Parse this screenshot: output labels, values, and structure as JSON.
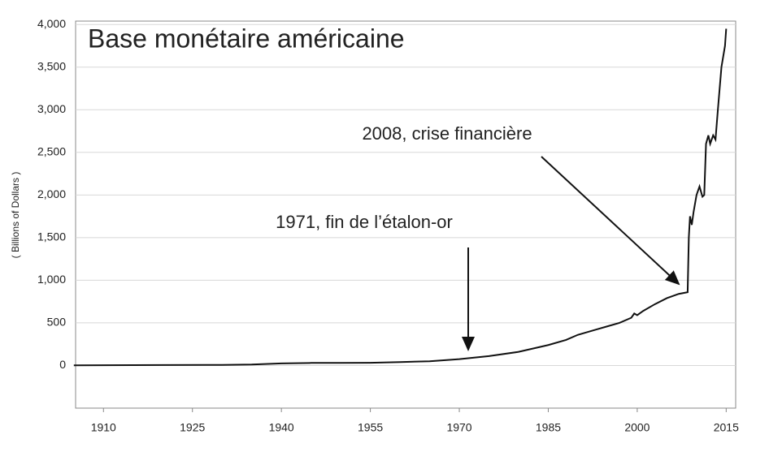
{
  "chart_data": {
    "type": "line",
    "title": "Base monétaire américaine",
    "y_label": "( Billions of Dollars )",
    "annotations": [
      "2008, crise financière",
      "1971, fin de l’étalon-or"
    ],
    "x": [
      1905,
      1915,
      1920,
      1930,
      1935,
      1940,
      1945,
      1950,
      1955,
      1960,
      1965,
      1970,
      1975,
      1980,
      1985,
      1988,
      1990,
      1993,
      1995,
      1997,
      1999,
      1999.5,
      2000,
      2001,
      2003,
      2005,
      2007,
      2008.5,
      2008.7,
      2008.9,
      2009.2,
      2009.5,
      2010,
      2010.5,
      2011,
      2011.3,
      2011.6,
      2012,
      2012.3,
      2012.8,
      2013.2,
      2013.6,
      2014.2,
      2014.8,
      2015
    ],
    "series": [
      {
        "name": "Base monétaire",
        "color": "#111111",
        "values": [
          2,
          4,
          6,
          7,
          12,
          25,
          30,
          30,
          32,
          40,
          50,
          75,
          110,
          160,
          240,
          300,
          360,
          420,
          460,
          500,
          560,
          610,
          590,
          640,
          720,
          790,
          840,
          860,
          1500,
          1750,
          1650,
          1800,
          2000,
          2100,
          1980,
          2000,
          2600,
          2700,
          2600,
          2700,
          2650,
          3000,
          3500,
          3750,
          3950
        ]
      }
    ],
    "xlim": [
      1905.3,
      2016.6
    ],
    "ylim": [
      -500,
      4040
    ],
    "xticks": [
      1910,
      1925,
      1940,
      1955,
      1970,
      1985,
      2000,
      2015
    ],
    "yticks": [
      0,
      500,
      {
        "value": 1000,
        "label": "1,000"
      },
      {
        "value": 1500,
        "label": "1,500"
      },
      {
        "value": 2000,
        "label": "2,000"
      },
      {
        "value": 2500,
        "label": "2,500"
      },
      {
        "value": 3000,
        "label": "3,000"
      },
      {
        "value": 3500,
        "label": "3,500"
      },
      {
        "value": 4000,
        "label": "4,000"
      }
    ],
    "grid": true
  }
}
